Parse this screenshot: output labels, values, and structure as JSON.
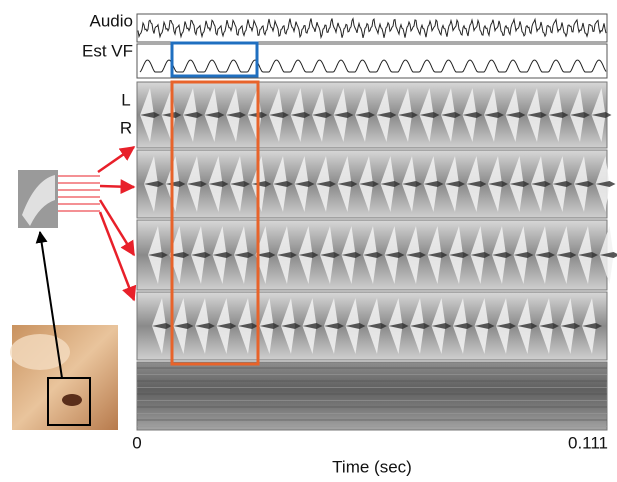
{
  "labels": {
    "audio": "Audio",
    "est_vf": "Est VF",
    "left": "L",
    "right": "R"
  },
  "axis": {
    "tick_start": "0",
    "tick_end": "0.111",
    "label": "Time (sec)"
  }
}
